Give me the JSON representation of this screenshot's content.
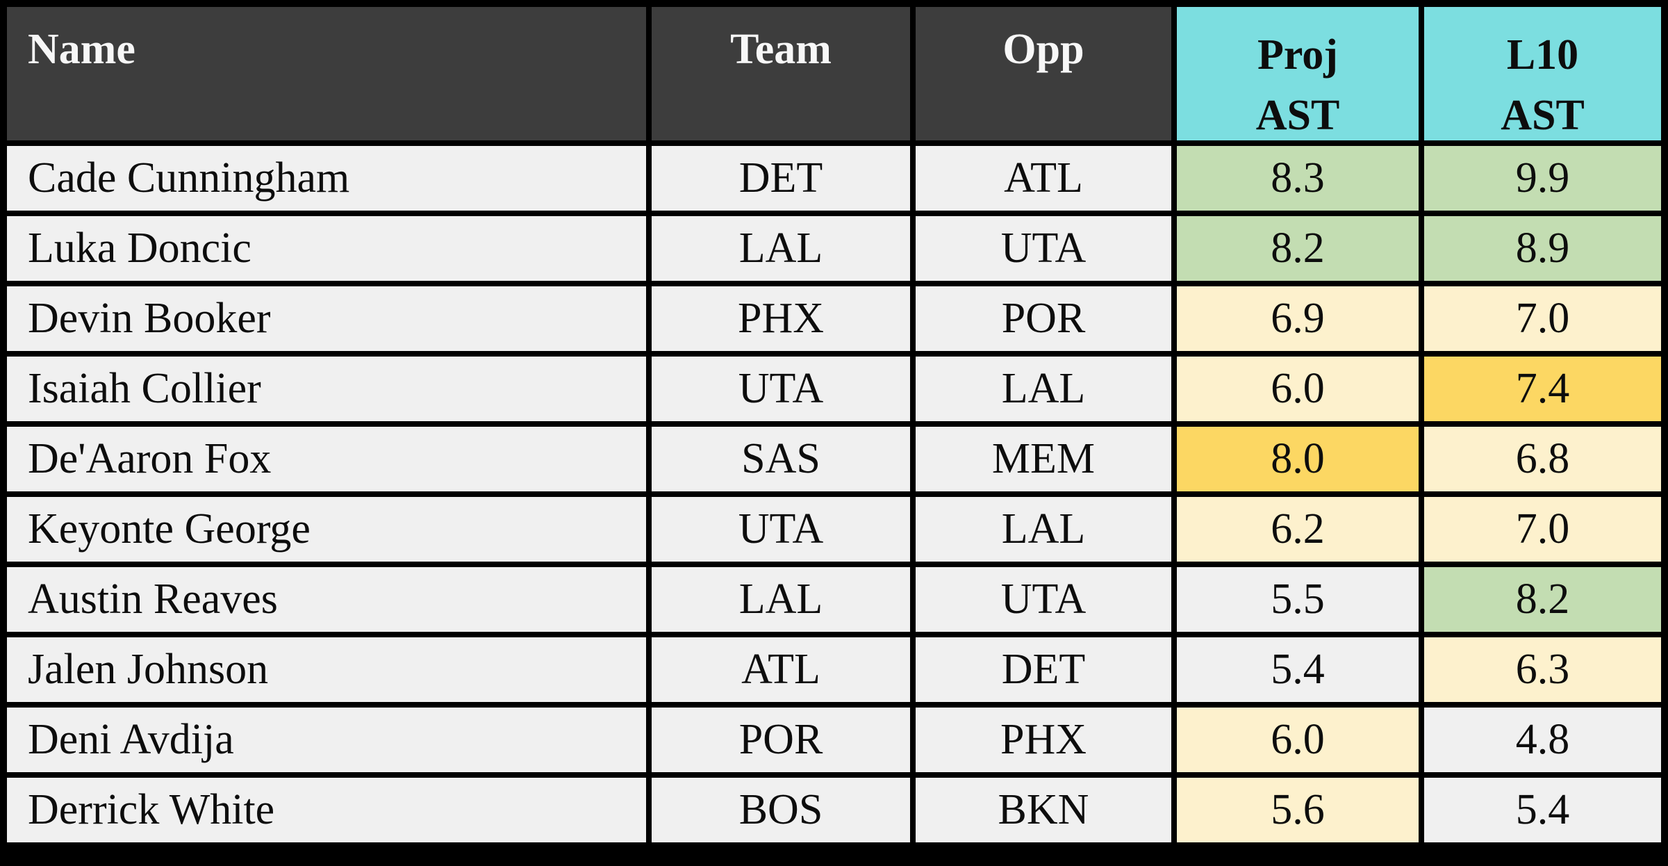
{
  "palette": {
    "header-dark": "#3d3d3d",
    "header-cyan": "#7cdee0",
    "header-text-light": "#f7f7f7",
    "cell-gray": "#f0f0f0",
    "cell-green": "#c3ddb2",
    "cell-cream": "#fdf1cd",
    "cell-orange": "#fcd763",
    "cell-text": "#0d0d0d",
    "grid-border": "#000000"
  },
  "header": {
    "name": "Name",
    "team": "Team",
    "opp": "Opp",
    "proj_line1": "Proj",
    "proj_line2": "AST",
    "l10_line1": "L10",
    "l10_line2": "AST"
  },
  "rows": [
    {
      "name": "Cade Cunningham",
      "team": "DET",
      "opp": "ATL",
      "proj": "8.3",
      "proj_color": "green",
      "l10": "9.9",
      "l10_color": "green"
    },
    {
      "name": "Luka Doncic",
      "team": "LAL",
      "opp": "UTA",
      "proj": "8.2",
      "proj_color": "green",
      "l10": "8.9",
      "l10_color": "green"
    },
    {
      "name": "Devin Booker",
      "team": "PHX",
      "opp": "POR",
      "proj": "6.9",
      "proj_color": "cream",
      "l10": "7.0",
      "l10_color": "cream"
    },
    {
      "name": "Isaiah Collier",
      "team": "UTA",
      "opp": "LAL",
      "proj": "6.0",
      "proj_color": "cream",
      "l10": "7.4",
      "l10_color": "orange"
    },
    {
      "name": "De'Aaron Fox",
      "team": "SAS",
      "opp": "MEM",
      "proj": "8.0",
      "proj_color": "orange",
      "l10": "6.8",
      "l10_color": "cream"
    },
    {
      "name": "Keyonte George",
      "team": "UTA",
      "opp": "LAL",
      "proj": "6.2",
      "proj_color": "cream",
      "l10": "7.0",
      "l10_color": "cream"
    },
    {
      "name": "Austin Reaves",
      "team": "LAL",
      "opp": "UTA",
      "proj": "5.5",
      "proj_color": "gray",
      "l10": "8.2",
      "l10_color": "green"
    },
    {
      "name": "Jalen Johnson",
      "team": "ATL",
      "opp": "DET",
      "proj": "5.4",
      "proj_color": "gray",
      "l10": "6.3",
      "l10_color": "cream"
    },
    {
      "name": "Deni Avdija",
      "team": "POR",
      "opp": "PHX",
      "proj": "6.0",
      "proj_color": "cream",
      "l10": "4.8",
      "l10_color": "gray"
    },
    {
      "name": "Derrick White",
      "team": "BOS",
      "opp": "BKN",
      "proj": "5.6",
      "proj_color": "cream",
      "l10": "5.4",
      "l10_color": "gray"
    }
  ],
  "chart_data": {
    "type": "table",
    "columns": [
      "Name",
      "Team",
      "Opp",
      "Proj AST",
      "L10 AST"
    ],
    "rows": [
      [
        "Cade Cunningham",
        "DET",
        "ATL",
        8.3,
        9.9
      ],
      [
        "Luka Doncic",
        "LAL",
        "UTA",
        8.2,
        8.9
      ],
      [
        "Devin Booker",
        "PHX",
        "POR",
        6.9,
        7.0
      ],
      [
        "Isaiah Collier",
        "UTA",
        "LAL",
        6.0,
        7.4
      ],
      [
        "De'Aaron Fox",
        "SAS",
        "MEM",
        8.0,
        6.8
      ],
      [
        "Keyonte George",
        "UTA",
        "LAL",
        6.2,
        7.0
      ],
      [
        "Austin Reaves",
        "LAL",
        "UTA",
        5.5,
        8.2
      ],
      [
        "Jalen Johnson",
        "ATL",
        "DET",
        5.4,
        6.3
      ],
      [
        "Deni Avdija",
        "POR",
        "PHX",
        6.0,
        4.8
      ],
      [
        "Derrick White",
        "BOS",
        "BKN",
        5.6,
        5.4
      ]
    ],
    "layout_hints": {
      "header_fill_dark": "#3d3d3d",
      "header_fill_cyan": "#7cdee0",
      "value_fills": {
        "green": "#c3ddb2",
        "cream": "#fdf1cd",
        "orange": "#fcd763",
        "gray": "#f0f0f0"
      },
      "gridlines": "black"
    }
  }
}
